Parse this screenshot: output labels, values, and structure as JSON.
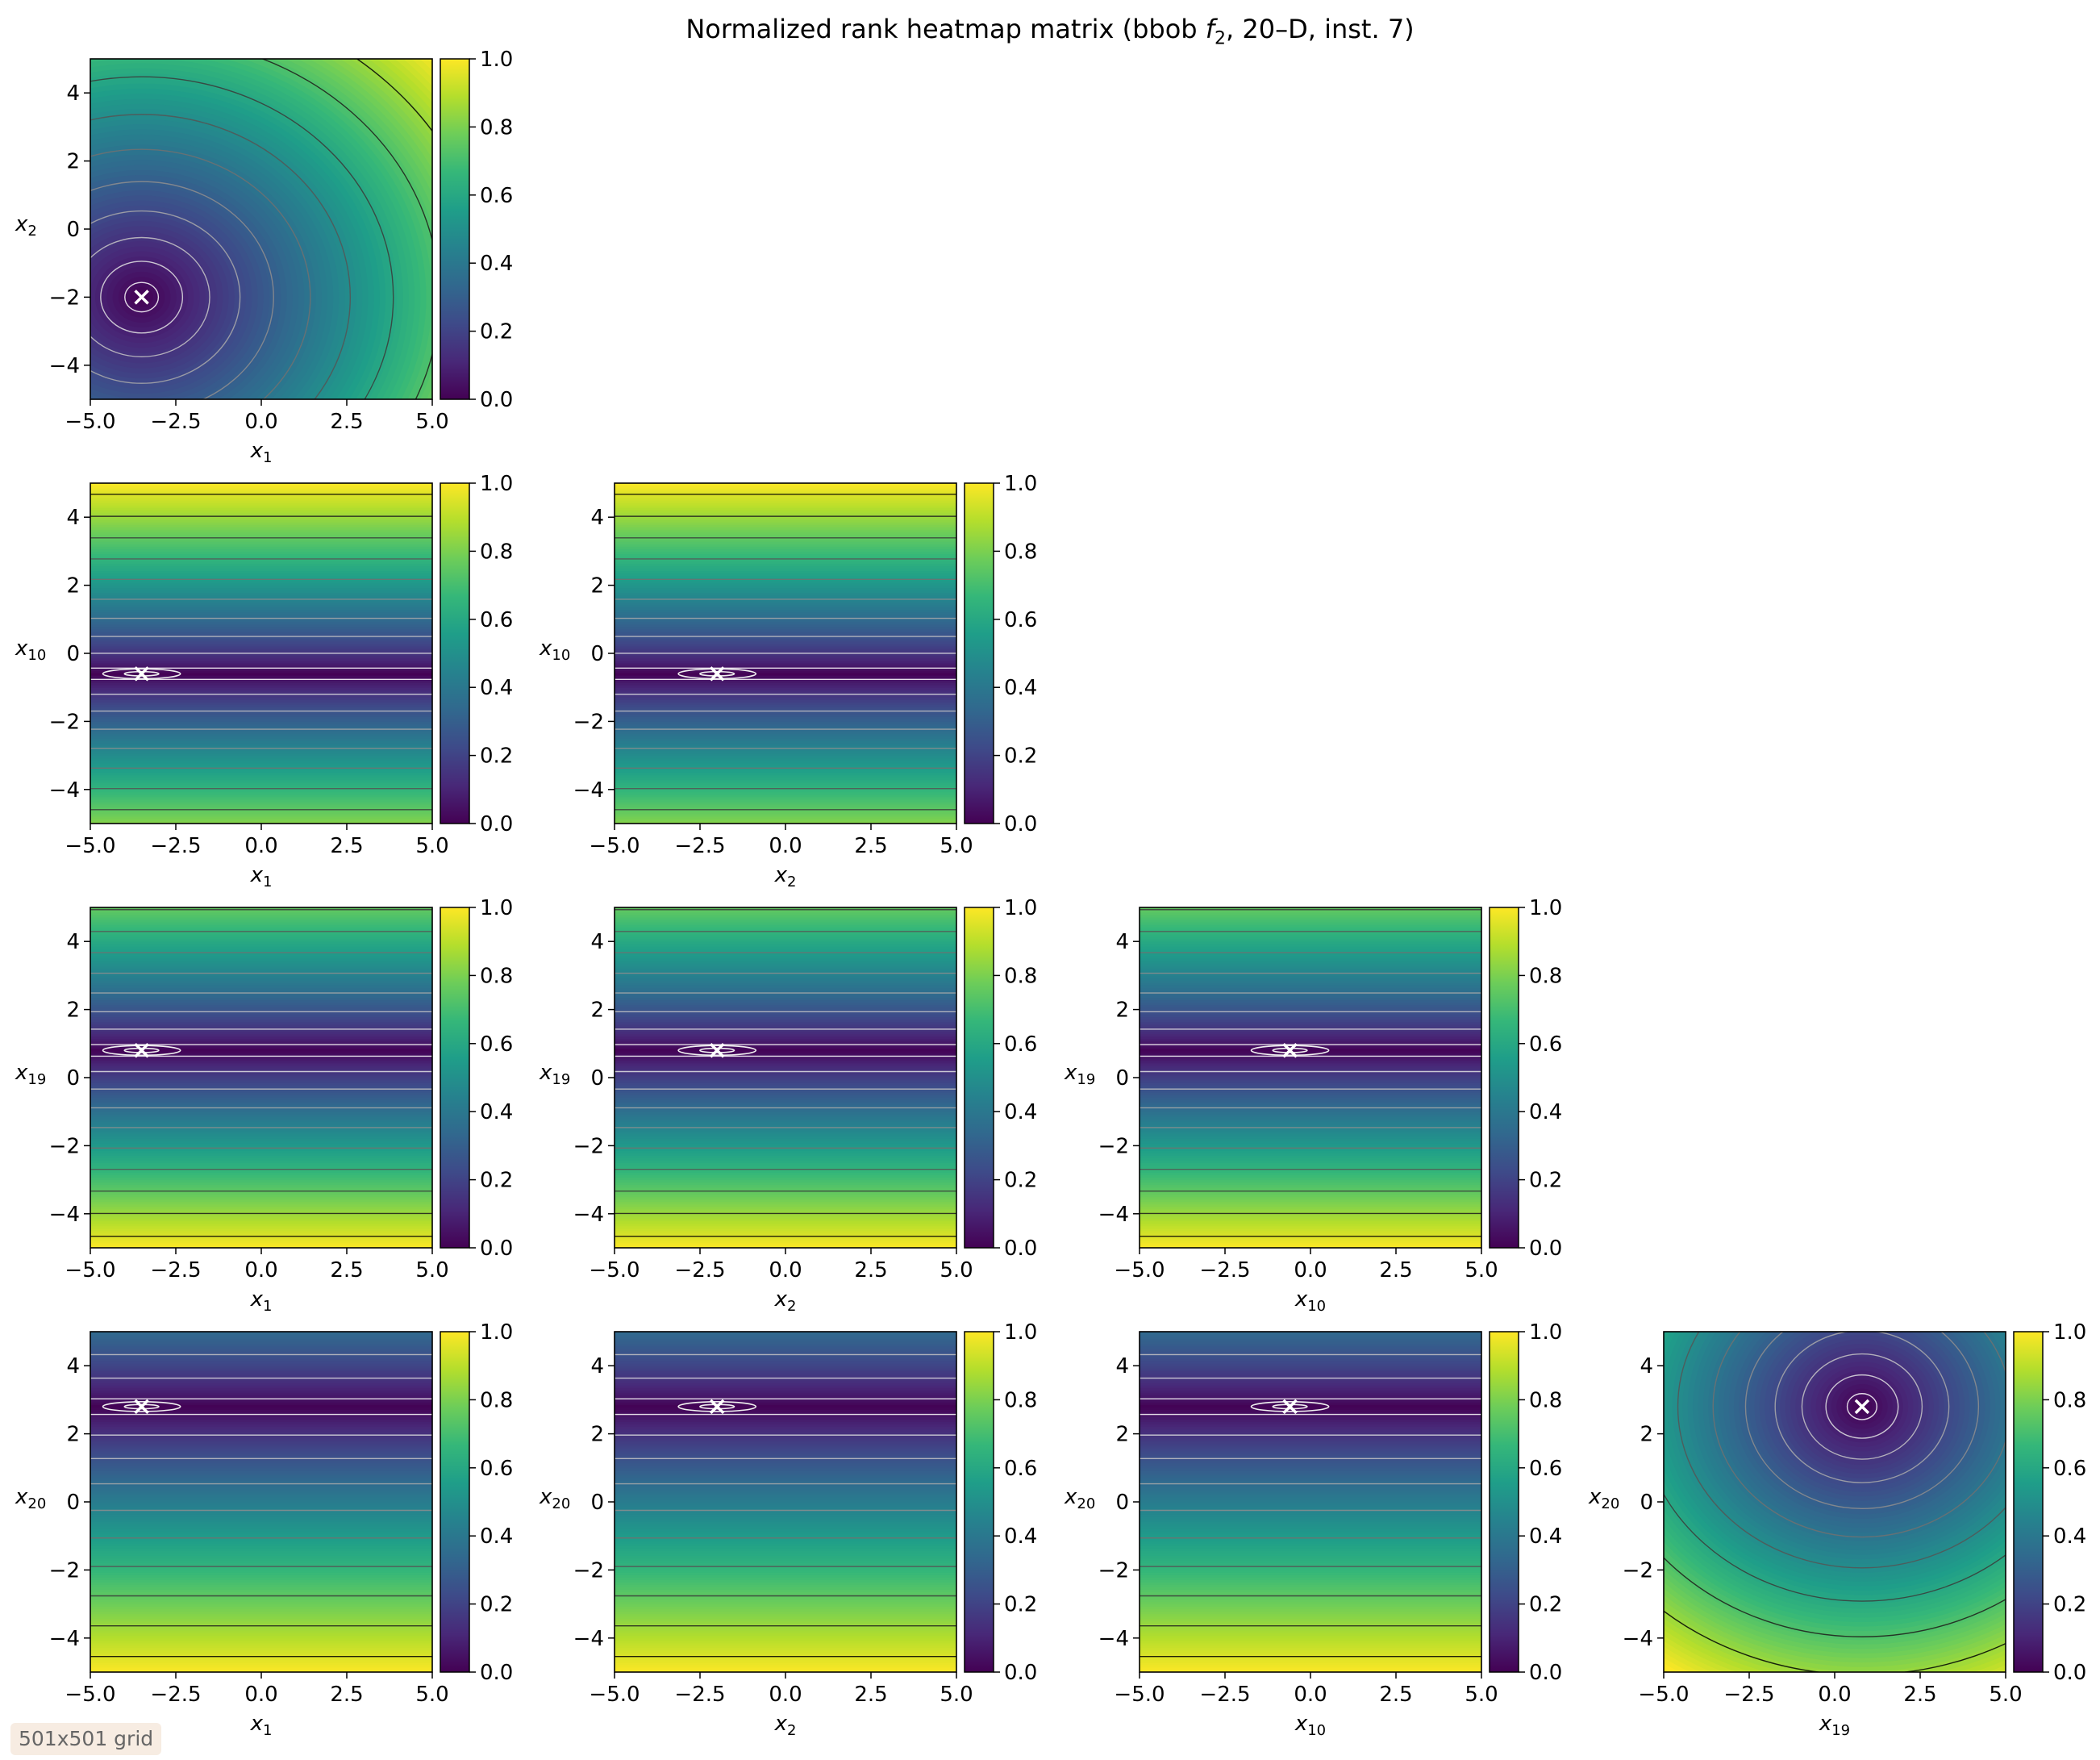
{
  "title": {
    "prefix": "Normalized rank heatmap matrix (bbob ",
    "func_letter": "f",
    "func_sub": "2",
    "suffix": ", 20–D, inst. 7)"
  },
  "annotation": "501x501 grid",
  "colors": {
    "colormap": "viridis",
    "optimum_marker": "#ffffff",
    "contour_low": "#ffffff",
    "contour_high": "#000000"
  },
  "chart_data": {
    "type": "heatmap",
    "layout": "lower-triangular matrix of 2D slices, 4 rows x 4 columns",
    "variables": [
      {
        "base": "x",
        "sub": "1"
      },
      {
        "base": "x",
        "sub": "2"
      },
      {
        "base": "x",
        "sub": "10"
      },
      {
        "base": "x",
        "sub": "19"
      },
      {
        "base": "x",
        "sub": "20"
      }
    ],
    "optimum": {
      "x1": -3.5,
      "x2": -2.0,
      "x10": -0.6,
      "x19": 0.8,
      "x20": 2.8
    },
    "xlim": [
      -5,
      5
    ],
    "ylim": [
      -5,
      5
    ],
    "xticks": [
      "−5.0",
      "−2.5",
      "0.0",
      "2.5",
      "5.0"
    ],
    "yticks": [
      "−4",
      "−2",
      "0",
      "2",
      "4"
    ],
    "colorbar": {
      "range": [
        0,
        1
      ],
      "ticks": [
        "0.0",
        "0.2",
        "0.4",
        "0.6",
        "0.8",
        "1.0"
      ]
    },
    "panels": [
      {
        "row": 0,
        "col": 0,
        "x_var": 0,
        "y_var": 1,
        "marker": [
          -3.5,
          -2.0
        ],
        "contour_shape": "elliptical basin around optimum"
      },
      {
        "row": 1,
        "col": 0,
        "x_var": 0,
        "y_var": 2,
        "marker": [
          -3.5,
          -0.6
        ],
        "contour_shape": "horizontal bands, valley at x10 = -0.6"
      },
      {
        "row": 1,
        "col": 1,
        "x_var": 1,
        "y_var": 2,
        "marker": [
          -2.0,
          -0.6
        ],
        "contour_shape": "horizontal bands, valley at x10 = -0.6"
      },
      {
        "row": 2,
        "col": 0,
        "x_var": 0,
        "y_var": 3,
        "marker": [
          -3.5,
          0.8
        ],
        "contour_shape": "horizontal bands, valley at x19 = 0.8"
      },
      {
        "row": 2,
        "col": 1,
        "x_var": 1,
        "y_var": 3,
        "marker": [
          -2.0,
          0.8
        ],
        "contour_shape": "horizontal bands, valley at x19 = 0.8"
      },
      {
        "row": 2,
        "col": 2,
        "x_var": 2,
        "y_var": 3,
        "marker": [
          -0.6,
          0.8
        ],
        "contour_shape": "horizontal bands, valley at x19 = 0.8"
      },
      {
        "row": 3,
        "col": 0,
        "x_var": 0,
        "y_var": 4,
        "marker": [
          -3.5,
          2.8
        ],
        "contour_shape": "horizontal bands, valley at x20 = 2.8"
      },
      {
        "row": 3,
        "col": 1,
        "x_var": 1,
        "y_var": 4,
        "marker": [
          -2.0,
          2.8
        ],
        "contour_shape": "horizontal bands, valley at x20 = 2.8"
      },
      {
        "row": 3,
        "col": 2,
        "x_var": 2,
        "y_var": 4,
        "marker": [
          -0.6,
          2.8
        ],
        "contour_shape": "horizontal bands, valley at x20 = 2.8"
      },
      {
        "row": 3,
        "col": 3,
        "x_var": 3,
        "y_var": 4,
        "marker": [
          0.8,
          2.8
        ],
        "contour_shape": "elliptical basin around optimum"
      }
    ]
  }
}
